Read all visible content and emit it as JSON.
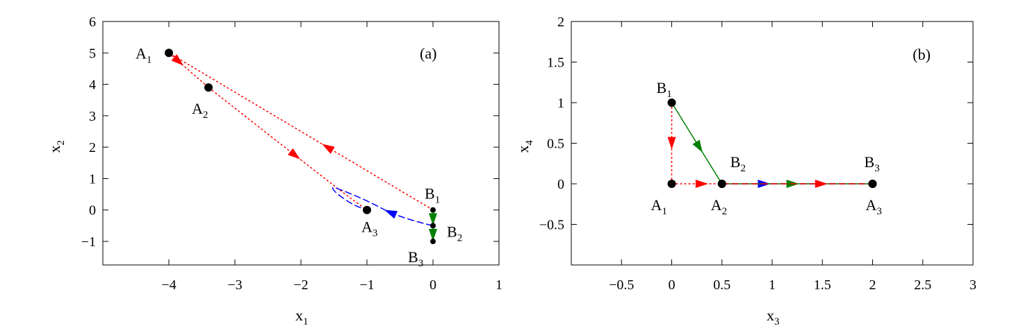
{
  "chart_data": [
    {
      "type": "line",
      "panel_label": "(a)",
      "xlabel": "x",
      "xlabel_sub": "1",
      "ylabel": "x",
      "ylabel_sub": "2",
      "xlim": [
        -5,
        1
      ],
      "ylim": [
        -1.75,
        6
      ],
      "xticks": [
        -4,
        -3,
        -2,
        -1,
        0,
        1
      ],
      "yticks": [
        -1,
        0,
        1,
        2,
        3,
        4,
        5,
        6
      ],
      "grid": false,
      "points": [
        {
          "name": "A",
          "sub": "1",
          "x": -4,
          "y": 5
        },
        {
          "name": "A",
          "sub": "2",
          "x": -3.4,
          "y": 3.9
        },
        {
          "name": "A",
          "sub": "3",
          "x": -1,
          "y": 0
        },
        {
          "name": "B",
          "sub": "1",
          "x": 0,
          "y": 0
        },
        {
          "name": "B",
          "sub": "2",
          "x": 0,
          "y": -0.5
        },
        {
          "name": "B",
          "sub": "3",
          "x": 0,
          "y": -1
        }
      ],
      "series": [
        {
          "color": "#ff0000",
          "style": "dotted",
          "arrow_at": 0.25,
          "x": [
            -4,
            -3.4
          ],
          "y": [
            5,
            3.9
          ]
        },
        {
          "color": "#ff0000",
          "style": "dotted",
          "arrow_at": 0.4,
          "x": [
            0,
            -4
          ],
          "y": [
            0,
            5
          ]
        },
        {
          "color": "#ff0000",
          "style": "dotted",
          "arrow_at": 0.55,
          "x": [
            -3.4,
            -1.4,
            -1
          ],
          "y": [
            3.9,
            0.6,
            0
          ]
        },
        {
          "color": "#0000ff",
          "style": "dashed",
          "arrow_at": 0.3,
          "x": [
            0,
            -0.5,
            -1.0,
            -1.4,
            -1.55,
            -1.45,
            -1.2,
            -1.0
          ],
          "y": [
            -0.5,
            -0.25,
            0.3,
            0.65,
            0.75,
            0.5,
            0.15,
            0
          ]
        },
        {
          "color": "#008000",
          "style": "solid",
          "arrow_at": 0.6,
          "x": [
            0,
            0
          ],
          "y": [
            0,
            -0.5
          ]
        },
        {
          "color": "#008000",
          "style": "solid",
          "arrow_at": 0.6,
          "x": [
            0,
            0
          ],
          "y": [
            -0.5,
            -1
          ]
        }
      ]
    },
    {
      "type": "line",
      "panel_label": "(b)",
      "xlabel": "x",
      "xlabel_sub": "3",
      "ylabel": "x",
      "ylabel_sub": "4",
      "xlim": [
        -1,
        3
      ],
      "ylim": [
        -1,
        2
      ],
      "xticks": [
        -0.5,
        0,
        0.5,
        1,
        1.5,
        2,
        2.5,
        3
      ],
      "xtick_labels": [
        "−0.5",
        "0",
        "0.5",
        "1",
        "1.5",
        "2",
        "2.5",
        "3"
      ],
      "yticks": [
        -0.5,
        0,
        0.5,
        1,
        1.5,
        2
      ],
      "ytick_labels": [
        "−0.5",
        "0",
        "0.5",
        "1",
        "1.5",
        "2"
      ],
      "grid": false,
      "points": [
        {
          "name": "A",
          "sub": "1",
          "x": 0,
          "y": 0
        },
        {
          "name": "A",
          "sub": "2",
          "x": 0.5,
          "y": 0
        },
        {
          "name": "A",
          "sub": "3",
          "x": 2,
          "y": 0
        },
        {
          "name": "B",
          "sub": "1",
          "x": 0,
          "y": 1
        },
        {
          "name": "B",
          "sub": "2",
          "x": 0.5,
          "y": 0
        },
        {
          "name": "B",
          "sub": "3",
          "x": 2,
          "y": 0
        }
      ],
      "series": [
        {
          "color": "#ff0000",
          "style": "dotted",
          "arrow_at": 0.5,
          "x": [
            0,
            0
          ],
          "y": [
            1,
            0
          ]
        },
        {
          "color": "#ff0000",
          "style": "dotted",
          "arrow_at": 0.6,
          "x": [
            0,
            0.5
          ],
          "y": [
            0,
            0
          ]
        },
        {
          "color": "#008000",
          "style": "solid",
          "arrow_at": 0.55,
          "x": [
            0,
            0.5
          ],
          "y": [
            1,
            0
          ]
        },
        {
          "color": "#0000ff",
          "style": "dashed",
          "arrow_at": 0.28,
          "x": [
            0.5,
            2
          ],
          "y": [
            0,
            0
          ]
        },
        {
          "color": "#008000",
          "style": "solid",
          "arrow_at": 0.47,
          "x": [
            0.5,
            2
          ],
          "y": [
            0,
            0
          ]
        },
        {
          "color": "#ff0000",
          "style": "dashed",
          "arrow_at": 0.66,
          "x": [
            0.5,
            2
          ],
          "y": [
            0,
            0
          ]
        }
      ]
    }
  ]
}
